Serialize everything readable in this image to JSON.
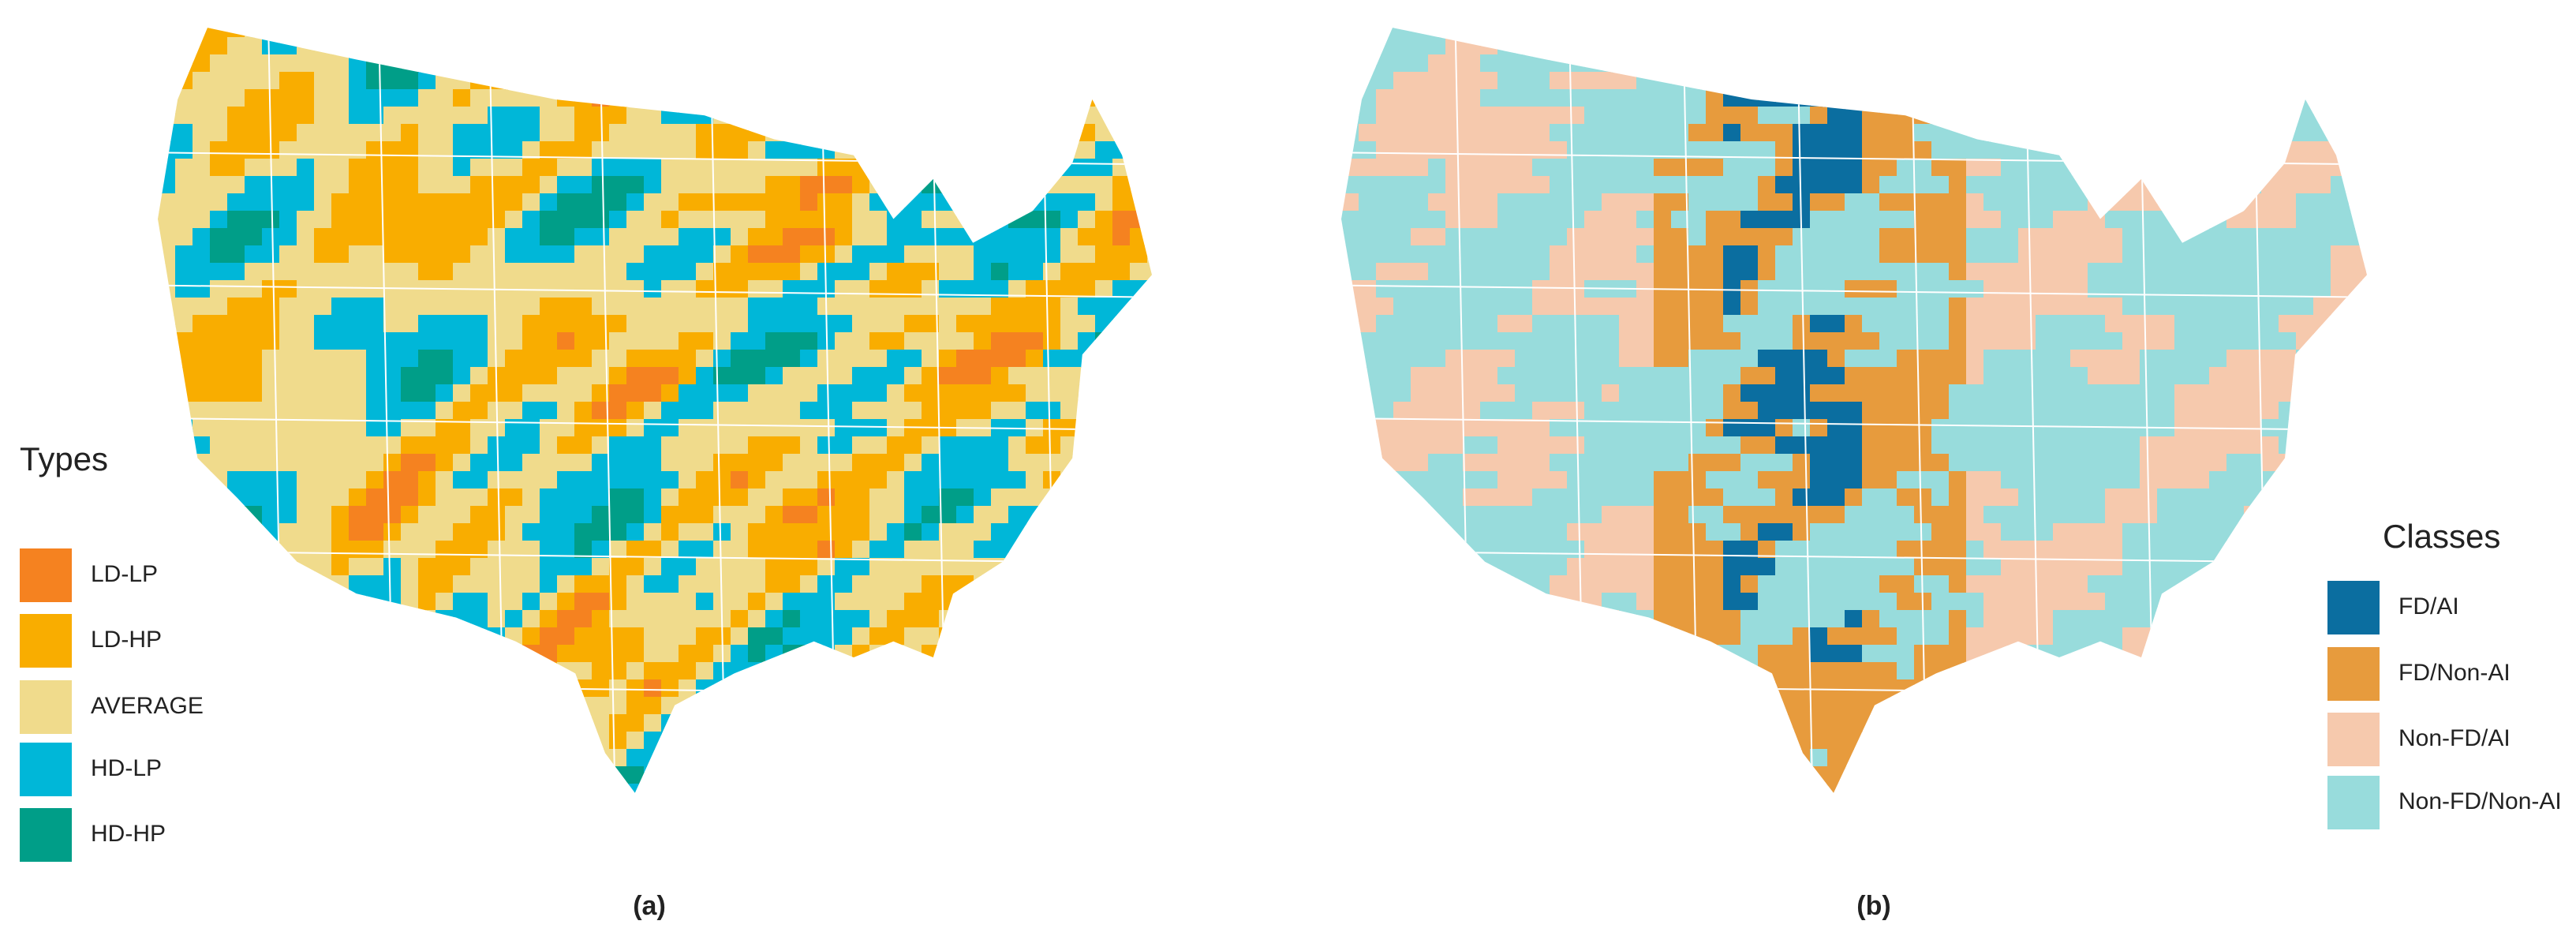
{
  "panel_a": {
    "label": "(a)",
    "legend": {
      "title": "Types",
      "items": [
        {
          "label": "LD-LP",
          "color": "#f58220"
        },
        {
          "label": "LD-HP",
          "color": "#f9ad00"
        },
        {
          "label": "AVERAGE",
          "color": "#f0db8c"
        },
        {
          "label": "HD-LP",
          "color": "#00b7d8"
        },
        {
          "label": "HD-HP",
          "color": "#009e88"
        }
      ]
    }
  },
  "panel_b": {
    "label": "(b)",
    "legend": {
      "title": "Classes",
      "items": [
        {
          "label": "FD/AI",
          "color": "#0b6ea0"
        },
        {
          "label": "FD/Non-AI",
          "color": "#e79b3d"
        },
        {
          "label": "Non-FD/AI",
          "color": "#f6c9ad"
        },
        {
          "label": "Non-FD/Non-AI",
          "color": "#98dcdc"
        }
      ]
    }
  }
}
